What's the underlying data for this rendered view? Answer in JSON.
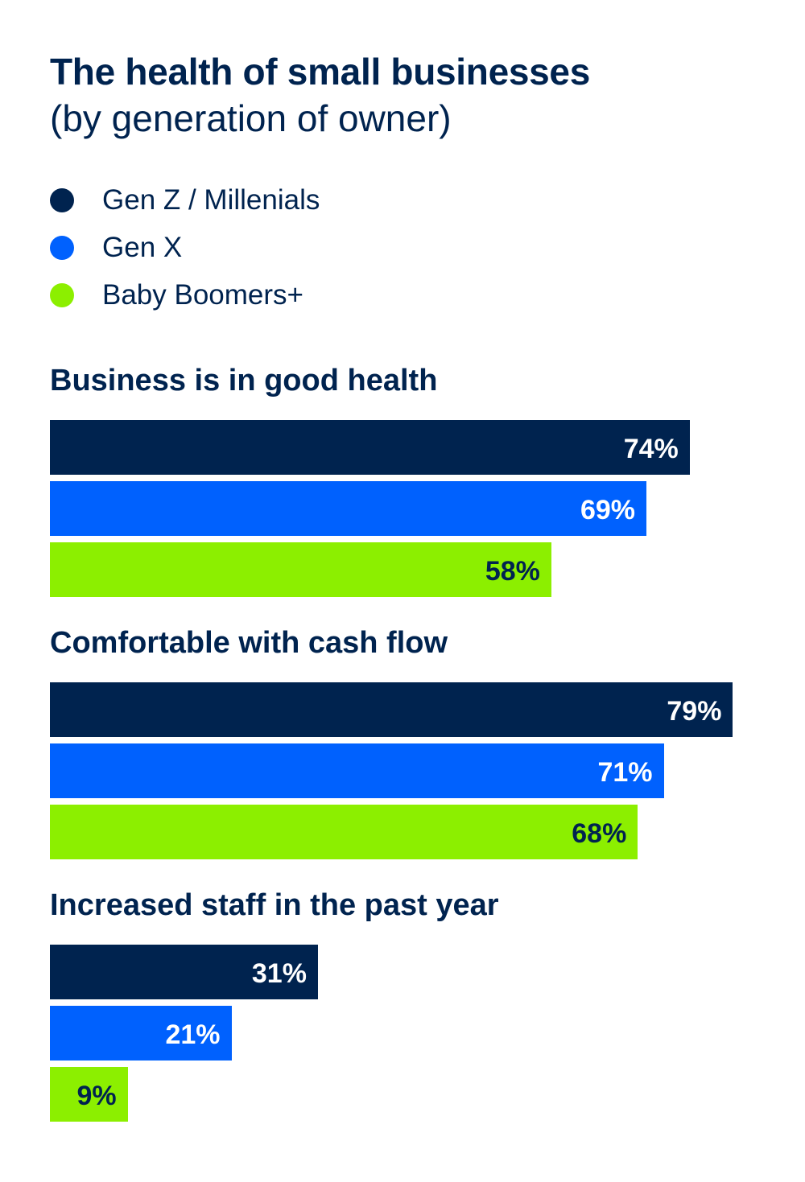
{
  "chart_data": {
    "type": "bar",
    "orientation": "horizontal",
    "title": "The health of small businesses",
    "subtitle": "(by generation of owner)",
    "categories": [
      "Business is in good health",
      "Comfortable with cash flow",
      "Increased staff in the past year"
    ],
    "series": [
      {
        "name": "Gen Z / Millenials",
        "color": "#00234f",
        "label_color": "#ffffff",
        "values": [
          74,
          79,
          31
        ]
      },
      {
        "name": "Gen X",
        "color": "#0061fe",
        "label_color": "#ffffff",
        "values": [
          69,
          71,
          21
        ]
      },
      {
        "name": "Baby Boomers+",
        "color": "#8cef00",
        "label_color": "#00234f",
        "values": [
          58,
          68,
          9
        ]
      }
    ],
    "value_suffix": "%",
    "legend_placement": "top-left",
    "grid": false,
    "xlim": [
      0,
      100
    ]
  }
}
